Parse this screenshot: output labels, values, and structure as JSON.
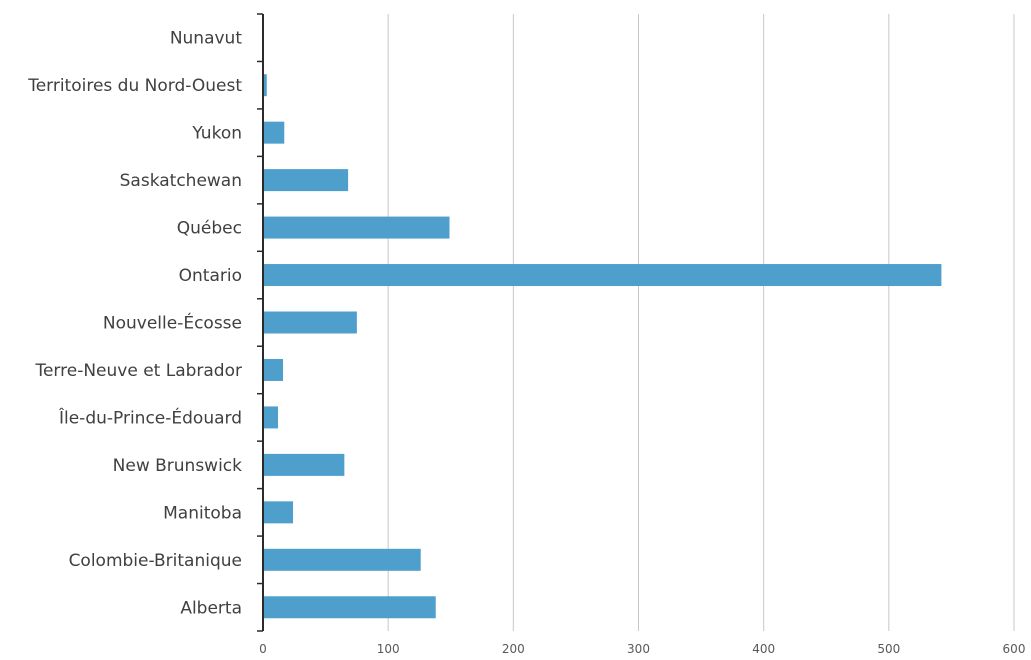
{
  "chart_data": {
    "type": "bar",
    "orientation": "horizontal",
    "categories": [
      "Nunavut",
      "Territoires du Nord-Ouest",
      "Yukon",
      "Saskatchewan",
      "Québec",
      "Ontario",
      "Nouvelle-Écosse",
      "Terre-Neuve et Labrador",
      "Île-du-Prince-Édouard",
      "New Brunswick",
      "Manitoba",
      "Colombie-Britanique",
      "Alberta"
    ],
    "values": [
      0,
      3,
      17,
      68,
      149,
      542,
      75,
      16,
      12,
      65,
      24,
      126,
      138
    ],
    "xlim": [
      0,
      600
    ],
    "xticks": [
      "0",
      "100",
      "200",
      "300",
      "400",
      "500",
      "600"
    ],
    "grid": true,
    "legend": false,
    "bar_color": "#4f9fcd",
    "grid_color": "#c8c8c8",
    "axis_color": "#2b2b2b"
  }
}
